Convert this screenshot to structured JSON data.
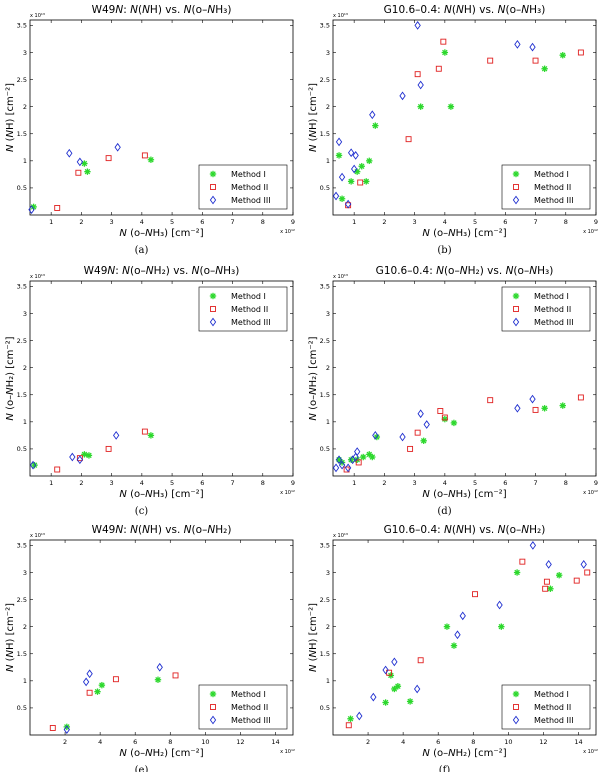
{
  "figure": {
    "legend_labels": [
      "Method I",
      "Method II",
      "Method III"
    ],
    "series_colors": [
      "#2cd82c",
      "#e02020",
      "#2030d0"
    ],
    "series_markers": [
      "star",
      "square",
      "diamond"
    ]
  },
  "chart_data": [
    {
      "type": "scatter",
      "title": "W49N:  N(NH) vs.  N(o–NH₃)",
      "xlabel": "N (o–NH₃) [cm⁻²]",
      "ylabel": "N (NH) [cm⁻²]",
      "x_multiplier": "x 10¹²",
      "y_multiplier": "x 10¹³",
      "xlim": [
        0.3,
        9
      ],
      "ylim": [
        0,
        3.6
      ],
      "xticks": [
        1,
        2,
        3,
        4,
        5,
        6,
        7,
        8,
        9
      ],
      "yticks": [
        0.5,
        1,
        1.5,
        2,
        2.5,
        3,
        3.5
      ],
      "caption": "(a)",
      "legend": true,
      "legend_position": "lower-right",
      "series": [
        {
          "name": "Method I",
          "points": [
            [
              0.42,
              0.15
            ],
            [
              2.1,
              0.95
            ],
            [
              2.2,
              0.8
            ],
            [
              4.3,
              1.02
            ]
          ]
        },
        {
          "name": "Method II",
          "points": [
            [
              1.2,
              0.13
            ],
            [
              1.9,
              0.78
            ],
            [
              2.9,
              1.05
            ],
            [
              4.1,
              1.1
            ]
          ]
        },
        {
          "name": "Method III",
          "points": [
            [
              0.35,
              0.1
            ],
            [
              1.6,
              1.14
            ],
            [
              1.95,
              0.98
            ],
            [
              3.2,
              1.25
            ]
          ]
        }
      ]
    },
    {
      "type": "scatter",
      "title": "G10.6–0.4:  N(NH) vs.  N(o–NH₃)",
      "xlabel": "N (o–NH₃) [cm⁻²]",
      "ylabel": "N (NH) [cm⁻²]",
      "x_multiplier": "x 10¹²",
      "y_multiplier": "x 10¹³",
      "xlim": [
        0.3,
        9
      ],
      "ylim": [
        0,
        3.6
      ],
      "xticks": [
        1,
        2,
        3,
        4,
        5,
        6,
        7,
        8,
        9
      ],
      "yticks": [
        0.5,
        1,
        1.5,
        2,
        2.5,
        3,
        3.5
      ],
      "caption": "(b)",
      "legend": true,
      "legend_position": "lower-right",
      "series": [
        {
          "name": "Method I",
          "points": [
            [
              0.5,
              1.1
            ],
            [
              0.6,
              0.3
            ],
            [
              0.9,
              0.62
            ],
            [
              1.1,
              0.8
            ],
            [
              1.25,
              0.9
            ],
            [
              1.4,
              0.62
            ],
            [
              1.5,
              1.0
            ],
            [
              1.7,
              1.65
            ],
            [
              3.2,
              2.0
            ],
            [
              4.0,
              3.0
            ],
            [
              4.2,
              2.0
            ],
            [
              7.3,
              2.7
            ],
            [
              7.9,
              2.95
            ]
          ]
        },
        {
          "name": "Method II",
          "points": [
            [
              0.8,
              0.18
            ],
            [
              1.2,
              0.6
            ],
            [
              2.8,
              1.4
            ],
            [
              3.1,
              2.6
            ],
            [
              3.8,
              2.7
            ],
            [
              3.95,
              3.2
            ],
            [
              5.5,
              2.85
            ],
            [
              7.0,
              2.85
            ],
            [
              8.5,
              3.0
            ]
          ]
        },
        {
          "name": "Method III",
          "points": [
            [
              0.4,
              0.35
            ],
            [
              0.5,
              1.35
            ],
            [
              0.6,
              0.7
            ],
            [
              0.8,
              0.2
            ],
            [
              0.9,
              1.15
            ],
            [
              1.0,
              0.85
            ],
            [
              1.05,
              1.1
            ],
            [
              1.6,
              1.85
            ],
            [
              2.6,
              2.2
            ],
            [
              3.2,
              2.4
            ],
            [
              3.1,
              3.5
            ],
            [
              6.4,
              3.15
            ],
            [
              6.9,
              3.1
            ]
          ]
        }
      ]
    },
    {
      "type": "scatter",
      "title": "W49N:  N(o–NH₂) vs.  N(o–NH₃)",
      "xlabel": "N (o–NH₃) [cm⁻²]",
      "ylabel": "N (o–NH₂) [cm⁻²]",
      "x_multiplier": "x 10¹²",
      "y_multiplier": "x 10¹³",
      "xlim": [
        0.3,
        9
      ],
      "ylim": [
        0,
        3.6
      ],
      "xticks": [
        1,
        2,
        3,
        4,
        5,
        6,
        7,
        8,
        9
      ],
      "yticks": [
        0.5,
        1,
        1.5,
        2,
        2.5,
        3,
        3.5
      ],
      "caption": "(c)",
      "legend": true,
      "legend_position": "upper-right",
      "series": [
        {
          "name": "Method I",
          "points": [
            [
              0.45,
              0.2
            ],
            [
              2.1,
              0.4
            ],
            [
              2.25,
              0.38
            ],
            [
              4.3,
              0.75
            ]
          ]
        },
        {
          "name": "Method II",
          "points": [
            [
              1.2,
              0.12
            ],
            [
              1.95,
              0.33
            ],
            [
              2.9,
              0.5
            ],
            [
              4.1,
              0.82
            ]
          ]
        },
        {
          "name": "Method III",
          "points": [
            [
              0.4,
              0.2
            ],
            [
              1.7,
              0.35
            ],
            [
              1.95,
              0.3
            ],
            [
              3.15,
              0.75
            ]
          ]
        }
      ]
    },
    {
      "type": "scatter",
      "title": "G10.6–0.4:  N(o–NH₂) vs.  N(o–NH₃)",
      "xlabel": "N (o–NH₃) [cm⁻²]",
      "ylabel": "N (o–NH₂) [cm⁻²]",
      "x_multiplier": "x 10¹²",
      "y_multiplier": "x 10¹³",
      "xlim": [
        0.3,
        9
      ],
      "ylim": [
        0,
        3.6
      ],
      "xticks": [
        1,
        2,
        3,
        4,
        5,
        6,
        7,
        8,
        9
      ],
      "yticks": [
        0.5,
        1,
        1.5,
        2,
        2.5,
        3,
        3.5
      ],
      "caption": "(d)",
      "legend": true,
      "legend_position": "upper-right",
      "series": [
        {
          "name": "Method I",
          "points": [
            [
              0.5,
              0.3
            ],
            [
              0.6,
              0.25
            ],
            [
              0.9,
              0.3
            ],
            [
              1.1,
              0.3
            ],
            [
              1.3,
              0.35
            ],
            [
              1.5,
              0.4
            ],
            [
              1.6,
              0.35
            ],
            [
              1.75,
              0.72
            ],
            [
              3.3,
              0.65
            ],
            [
              4.0,
              1.05
            ],
            [
              4.3,
              0.98
            ],
            [
              7.3,
              1.25
            ],
            [
              7.9,
              1.3
            ]
          ]
        },
        {
          "name": "Method II",
          "points": [
            [
              0.75,
              0.12
            ],
            [
              1.15,
              0.25
            ],
            [
              2.85,
              0.5
            ],
            [
              3.1,
              0.8
            ],
            [
              3.85,
              1.2
            ],
            [
              4.0,
              1.08
            ],
            [
              5.5,
              1.4
            ],
            [
              7.0,
              1.22
            ],
            [
              8.5,
              1.45
            ]
          ]
        },
        {
          "name": "Method III",
          "points": [
            [
              0.4,
              0.15
            ],
            [
              0.5,
              0.3
            ],
            [
              0.6,
              0.2
            ],
            [
              0.8,
              0.15
            ],
            [
              0.95,
              0.3
            ],
            [
              1.05,
              0.35
            ],
            [
              1.1,
              0.45
            ],
            [
              1.7,
              0.75
            ],
            [
              2.6,
              0.72
            ],
            [
              3.2,
              1.15
            ],
            [
              3.4,
              0.95
            ],
            [
              6.4,
              1.25
            ],
            [
              6.9,
              1.42
            ]
          ]
        }
      ]
    },
    {
      "type": "scatter",
      "title": "W49N:  N(NH) vs.  N(o–NH₂)",
      "xlabel": "N (o–NH₂) [cm⁻²]",
      "ylabel": "N (NH) [cm⁻²]",
      "x_multiplier": "x 10¹²",
      "y_multiplier": "x 10¹³",
      "xlim": [
        0,
        15
      ],
      "ylim": [
        0,
        3.6
      ],
      "xticks": [
        2,
        4,
        6,
        8,
        10,
        12,
        14
      ],
      "yticks": [
        0.5,
        1,
        1.5,
        2,
        2.5,
        3,
        3.5
      ],
      "caption": "(e)",
      "legend": true,
      "legend_position": "lower-right",
      "series": [
        {
          "name": "Method I",
          "points": [
            [
              2.1,
              0.15
            ],
            [
              3.85,
              0.8
            ],
            [
              4.1,
              0.92
            ],
            [
              7.3,
              1.02
            ]
          ]
        },
        {
          "name": "Method II",
          "points": [
            [
              1.3,
              0.13
            ],
            [
              3.4,
              0.78
            ],
            [
              4.9,
              1.03
            ],
            [
              8.3,
              1.1
            ]
          ]
        },
        {
          "name": "Method III",
          "points": [
            [
              2.1,
              0.1
            ],
            [
              3.2,
              0.98
            ],
            [
              3.4,
              1.13
            ],
            [
              7.4,
              1.25
            ]
          ]
        }
      ]
    },
    {
      "type": "scatter",
      "title": "G10.6–0.4:  N(NH) vs.  N(o–NH₂)",
      "xlabel": "N (o–NH₂) [cm⁻²]",
      "ylabel": "N (NH) [cm⁻²]",
      "x_multiplier": "x 10¹²",
      "y_multiplier": "x 10¹³",
      "xlim": [
        0,
        15
      ],
      "ylim": [
        0,
        3.6
      ],
      "xticks": [
        2,
        4,
        6,
        8,
        10,
        12,
        14
      ],
      "yticks": [
        0.5,
        1,
        1.5,
        2,
        2.5,
        3,
        3.5
      ],
      "caption": "(f)",
      "legend": true,
      "legend_position": "lower-right",
      "series": [
        {
          "name": "Method I",
          "points": [
            [
              1.0,
              0.3
            ],
            [
              3.0,
              0.6
            ],
            [
              3.5,
              0.85
            ],
            [
              3.3,
              1.1
            ],
            [
              4.4,
              0.62
            ],
            [
              3.7,
              0.9
            ],
            [
              6.5,
              2.0
            ],
            [
              6.9,
              1.65
            ],
            [
              9.6,
              2.0
            ],
            [
              10.5,
              3.0
            ],
            [
              12.4,
              2.7
            ],
            [
              12.9,
              2.95
            ]
          ]
        },
        {
          "name": "Method II",
          "points": [
            [
              0.9,
              0.18
            ],
            [
              3.2,
              1.15
            ],
            [
              5.0,
              1.38
            ],
            [
              8.1,
              2.6
            ],
            [
              10.8,
              3.2
            ],
            [
              12.1,
              2.7
            ],
            [
              12.2,
              2.83
            ],
            [
              13.9,
              2.85
            ],
            [
              14.5,
              3.0
            ]
          ]
        },
        {
          "name": "Method III",
          "points": [
            [
              1.5,
              0.35
            ],
            [
              2.3,
              0.7
            ],
            [
              3.0,
              1.2
            ],
            [
              3.5,
              1.35
            ],
            [
              4.8,
              0.85
            ],
            [
              7.1,
              1.85
            ],
            [
              7.4,
              2.2
            ],
            [
              9.5,
              2.4
            ],
            [
              11.4,
              3.5
            ],
            [
              12.3,
              3.15
            ],
            [
              14.3,
              3.15
            ]
          ]
        }
      ]
    }
  ]
}
